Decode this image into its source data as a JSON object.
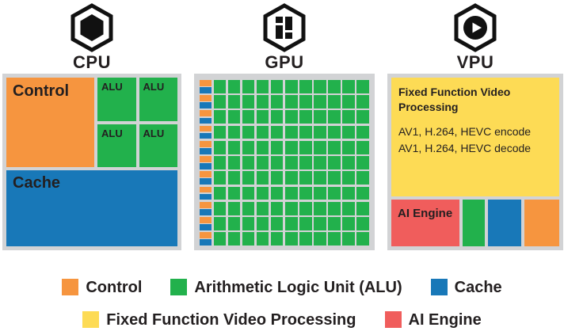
{
  "colors": {
    "orange": "#F6953F",
    "green": "#22B14C",
    "blue": "#1878B8",
    "yellow": "#FDDB55",
    "red": "#F05D5C",
    "panel_bg": "#D2D3D5",
    "text": "#231F20",
    "icon": "#111111"
  },
  "columns": [
    {
      "key": "cpu",
      "label": "CPU",
      "icon": "cpu-chip-hexagon-icon"
    },
    {
      "key": "gpu",
      "label": "GPU",
      "icon": "gpu-grid-hexagon-icon"
    },
    {
      "key": "vpu",
      "label": "VPU",
      "icon": "vpu-play-hexagon-icon"
    }
  ],
  "cpu": {
    "control_label": "Control",
    "alu_labels": [
      "ALU",
      "ALU",
      "ALU",
      "ALU"
    ],
    "cache_label": "Cache"
  },
  "gpu": {
    "rows": 11,
    "alu_cols": 11
  },
  "vpu": {
    "ffvp_title": "Fixed Function Video Processing",
    "ffvp_lines": [
      "AV1, H.264, HEVC encode",
      "AV1, H.264, HEVC decode"
    ],
    "ai_engine_label": "AI Engine"
  },
  "legend": {
    "rows": [
      [
        {
          "key": "control",
          "color": "orange",
          "label": "Control"
        },
        {
          "key": "alu",
          "color": "green",
          "label": "Arithmetic Logic Unit (ALU)"
        },
        {
          "key": "cache",
          "color": "blue",
          "label": "Cache"
        }
      ],
      [
        {
          "key": "ffvp",
          "color": "yellow",
          "label": "Fixed Function Video Processing"
        },
        {
          "key": "ai-engine",
          "color": "red",
          "label": "AI Engine"
        }
      ]
    ]
  }
}
